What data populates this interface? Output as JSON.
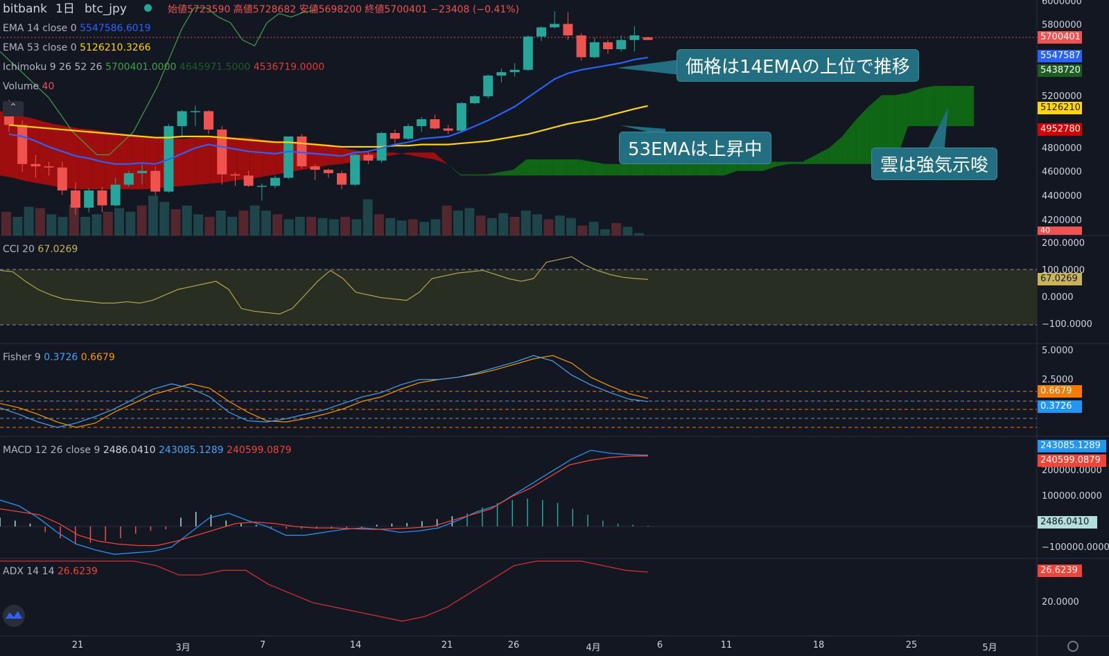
{
  "header": {
    "exchange": "bitbank",
    "interval": "1日",
    "symbol": "btc_jpy",
    "ohlc": "始値5723590 高値5728682 安値5698200 終値5700401 −23408 (−0.41%)"
  },
  "legend": {
    "ema14": {
      "name": "EMA 14 close 0",
      "value": "5547586.6019",
      "color": "#2962ff"
    },
    "ema53": {
      "name": "EMA 53 close 0",
      "value": "5126210.3266",
      "color": "#ffd600"
    },
    "ichimoku": {
      "name": "Ichimoku 9 26 52 26",
      "v1": "5700401.0000",
      "v2": "4645971.5000",
      "v3": "4536719.0000"
    },
    "volume": {
      "name": "Volume",
      "value": "40"
    },
    "cci": {
      "name": "CCI 20",
      "value": "67.0269"
    },
    "fisher": {
      "name": "Fisher 9",
      "v1": "0.3726",
      "v2": "0.6679"
    },
    "macd": {
      "name": "MACD 12 26 close 9",
      "v1": "2486.0410",
      "v2": "243085.1289",
      "v3": "240599.0879"
    },
    "adx": {
      "name": "ADX 14 14",
      "value": "26.6239"
    }
  },
  "callouts": {
    "ema14": "価格は14EMAの上位で推移",
    "ema53": "53EMAは上昇中",
    "cloud": "雲は強気示唆"
  },
  "price_axis": {
    "ticks": [
      "6000000",
      "5800000",
      "5200000",
      "4800000",
      "4600000",
      "4400000",
      "4200000"
    ],
    "tags": {
      "close": "5700401",
      "ema14": "5547587",
      "span": "5438720",
      "ema53": "5126210",
      "spanb": "4952780",
      "vol": "40"
    }
  },
  "cci_axis": {
    "ticks": [
      "200.0000",
      "100.0000",
      "0.0000",
      "−100.0000"
    ],
    "tag": "67.0269"
  },
  "fisher_axis": {
    "ticks": [
      "5.0000",
      "2.5000"
    ],
    "tag1": "0.6679",
    "tag2": "0.3726"
  },
  "macd_axis": {
    "ticks": [
      "200000.0000",
      "100000.0000",
      "−100000.0000"
    ],
    "tag1": "243085.1289",
    "tag2": "240599.0879",
    "tag3": "2486.0410"
  },
  "adx_axis": {
    "ticks": [
      "20.0000"
    ],
    "tag": "26.6239"
  },
  "x_axis": {
    "ticks": [
      "21",
      "3月",
      "7",
      "14",
      "21",
      "26",
      "4月",
      "6",
      "11",
      "18",
      "25",
      "5月"
    ]
  },
  "chart_data": {
    "type": "candlestick",
    "title": "bitbank btc_jpy 1日",
    "ylim": [
      4100000,
      6000000
    ],
    "candles": [
      [
        5060000,
        5180000,
        4900000,
        4960000
      ],
      [
        4960000,
        5000000,
        4550000,
        4620000
      ],
      [
        4620000,
        4700000,
        4500000,
        4600000
      ],
      [
        4600000,
        4640000,
        4520000,
        4590000
      ],
      [
        4590000,
        4640000,
        4350000,
        4390000
      ],
      [
        4390000,
        4460000,
        4180000,
        4240000
      ],
      [
        4240000,
        4410000,
        4200000,
        4390000
      ],
      [
        4390000,
        4420000,
        4200000,
        4260000
      ],
      [
        4260000,
        4500000,
        4250000,
        4440000
      ],
      [
        4440000,
        4560000,
        4420000,
        4540000
      ],
      [
        4540000,
        4620000,
        4440000,
        4560000
      ],
      [
        4560000,
        4600000,
        4350000,
        4380000
      ],
      [
        4380000,
        4970000,
        4370000,
        4950000
      ],
      [
        4950000,
        5090000,
        4850000,
        5080000
      ],
      [
        5080000,
        5130000,
        4950000,
        5080000
      ],
      [
        5080000,
        5090000,
        4880000,
        4920000
      ],
      [
        4920000,
        4950000,
        4440000,
        4530000
      ],
      [
        4530000,
        4550000,
        4430000,
        4520000
      ],
      [
        4520000,
        4560000,
        4420000,
        4430000
      ],
      [
        4430000,
        4450000,
        4300000,
        4430000
      ],
      [
        4430000,
        4520000,
        4410000,
        4500000
      ],
      [
        4500000,
        4860000,
        4490000,
        4860000
      ],
      [
        4860000,
        4880000,
        4580000,
        4600000
      ],
      [
        4600000,
        4620000,
        4480000,
        4570000
      ],
      [
        4570000,
        4580000,
        4500000,
        4540000
      ],
      [
        4540000,
        4560000,
        4400000,
        4440000
      ],
      [
        4440000,
        4710000,
        4430000,
        4700000
      ],
      [
        4700000,
        4730000,
        4620000,
        4650000
      ],
      [
        4650000,
        4900000,
        4630000,
        4890000
      ],
      [
        4890000,
        4920000,
        4800000,
        4840000
      ],
      [
        4840000,
        4970000,
        4830000,
        4950000
      ],
      [
        4950000,
        5030000,
        4900000,
        5010000
      ],
      [
        5010000,
        5050000,
        4920000,
        4930000
      ],
      [
        4930000,
        4960000,
        4880000,
        4910000
      ],
      [
        4910000,
        5160000,
        4900000,
        5150000
      ],
      [
        5150000,
        5220000,
        5140000,
        5210000
      ],
      [
        5210000,
        5400000,
        5190000,
        5390000
      ],
      [
        5390000,
        5450000,
        5330000,
        5420000
      ],
      [
        5420000,
        5500000,
        5380000,
        5440000
      ],
      [
        5440000,
        5740000,
        5430000,
        5730000
      ],
      [
        5730000,
        5820000,
        5690000,
        5810000
      ],
      [
        5810000,
        5950000,
        5800000,
        5840000
      ],
      [
        5840000,
        5940000,
        5700000,
        5740000
      ],
      [
        5740000,
        5760000,
        5520000,
        5550000
      ],
      [
        5550000,
        5720000,
        5540000,
        5680000
      ],
      [
        5680000,
        5700000,
        5580000,
        5620000
      ],
      [
        5620000,
        5740000,
        5600000,
        5700000
      ],
      [
        5700000,
        5820000,
        5600000,
        5740000
      ],
      [
        5723590,
        5728682,
        5698200,
        5700401
      ]
    ],
    "ema14": [
      4880000,
      4860000,
      4820000,
      4770000,
      4730000,
      4690000,
      4670000,
      4640000,
      4620000,
      4620000,
      4630000,
      4620000,
      4660000,
      4710000,
      4760000,
      4790000,
      4770000,
      4750000,
      4730000,
      4720000,
      4710000,
      4730000,
      4720000,
      4710000,
      4700000,
      4690000,
      4720000,
      4730000,
      4760000,
      4790000,
      4810000,
      4840000,
      4850000,
      4860000,
      4900000,
      4950000,
      5000000,
      5060000,
      5120000,
      5200000,
      5280000,
      5360000,
      5410000,
      5440000,
      5460000,
      5480000,
      5500000,
      5530000,
      5547587
    ],
    "ema53": [
      4960000,
      4950000,
      4940000,
      4930000,
      4920000,
      4910000,
      4900000,
      4890000,
      4880000,
      4870000,
      4860000,
      4850000,
      4850000,
      4860000,
      4860000,
      4860000,
      4850000,
      4840000,
      4830000,
      4820000,
      4810000,
      4810000,
      4800000,
      4790000,
      4780000,
      4770000,
      4770000,
      4770000,
      4770000,
      4780000,
      4780000,
      4790000,
      4790000,
      4790000,
      4800000,
      4810000,
      4820000,
      4840000,
      4860000,
      4880000,
      4910000,
      4940000,
      4970000,
      4990000,
      5010000,
      5040000,
      5070000,
      5100000,
      5126210
    ],
    "cloud_a": [
      5080000,
      5060000,
      5030000,
      5000000,
      4970000,
      4950000,
      4930000,
      4920000,
      4900000,
      4890000,
      4870000,
      4860000,
      4850000,
      4840000,
      4840000,
      4850000,
      4860000,
      4860000,
      4850000,
      4850000,
      4830000,
      4820000,
      4820000,
      4810000,
      4800000,
      4790000,
      4760000,
      4740000,
      4720000,
      4720000,
      4720000,
      4700000,
      4680000,
      4660000,
      4620000,
      4530000,
      4530000,
      4530000,
      4550000,
      4570000,
      4660000,
      4660000,
      4660000,
      4660000,
      4660000,
      4640000,
      4620000,
      4620000,
      4620000,
      4620000,
      4620000,
      4640000,
      4640000,
      4640000,
      4640000,
      4640000,
      4640000,
      4640000,
      4640000,
      4640000,
      4640000,
      4640000,
      4700000,
      4760000,
      4860000,
      5000000,
      5120000,
      5220000,
      5220000,
      5240000,
      5280000,
      5300000,
      5300000,
      5300000,
      5300000
    ],
    "cloud_b": [
      4520000,
      4500000,
      4470000,
      4450000,
      4430000,
      4410000,
      4400000,
      4400000,
      4400000,
      4400000,
      4400000,
      4400000,
      4410000,
      4420000,
      4430000,
      4440000,
      4450000,
      4460000,
      4480000,
      4490000,
      4510000,
      4530000,
      4550000,
      4570000,
      4590000,
      4610000,
      4620000,
      4640000,
      4660000,
      4680000,
      4700000,
      4720000,
      4720000,
      4720000,
      4620000,
      4520000,
      4520000,
      4520000,
      4520000,
      4520000,
      4520000,
      4520000,
      4520000,
      4520000,
      4520000,
      4520000,
      4520000,
      4520000,
      4520000,
      4520000,
      4520000,
      4520000,
      4520000,
      4520000,
      4520000,
      4520000,
      4560000,
      4560000,
      4560000,
      4600000,
      4620000,
      4620000,
      4620000,
      4620000,
      4620000,
      4620000,
      4620000,
      4620000,
      4620000,
      4950000,
      4950000,
      4950000,
      4950000,
      4950000,
      4950000
    ],
    "chikou": [
      5600000,
      5500000,
      5400000,
      5300000,
      5200000,
      5050000,
      4900000,
      4800000,
      4700000,
      4700000,
      4800000,
      4900000,
      5100000,
      5300000,
      5550000,
      5800000,
      5980000,
      5980000,
      5900000,
      5850000,
      5700000,
      5650000,
      5850000,
      5930000,
      5900000,
      5940000,
      5960000
    ],
    "volume": [
      38,
      30,
      46,
      44,
      34,
      30,
      50,
      30,
      34,
      38,
      44,
      38,
      48,
      64,
      54,
      42,
      48,
      34,
      30,
      40,
      30,
      40,
      48,
      40,
      34,
      26,
      30,
      30,
      28,
      26,
      30,
      26,
      58,
      34,
      28,
      24,
      26,
      22,
      26,
      48,
      40,
      44,
      32,
      28,
      36,
      30,
      40,
      34,
      26,
      32,
      28,
      16,
      22,
      10,
      20,
      14,
      4
    ],
    "cci": [
      100,
      95,
      60,
      30,
      10,
      -5,
      -10,
      -15,
      -20,
      -20,
      -15,
      -20,
      -10,
      10,
      30,
      40,
      50,
      60,
      30,
      -40,
      -50,
      -55,
      -60,
      -40,
      10,
      60,
      100,
      70,
      20,
      10,
      0,
      -5,
      -10,
      20,
      70,
      80,
      90,
      95,
      100,
      85,
      70,
      60,
      70,
      130,
      140,
      150,
      120,
      100,
      85,
      75,
      70,
      67
    ],
    "fisher": [
      -0.2,
      -0.8,
      -1.5,
      -2.0,
      -1.6,
      -1.0,
      -0.3,
      0.6,
      1.5,
      2.0,
      1.6,
      0.8,
      -0.6,
      -1.4,
      -1.5,
      -1.2,
      -0.8,
      -0.4,
      0.2,
      0.8,
      1.2,
      1.9,
      2.4,
      2.4,
      2.6,
      3.0,
      3.5,
      4.0,
      4.6,
      4.1,
      2.8,
      1.9,
      1.2,
      0.6,
      0.3726
    ],
    "fisher_signal": [
      0.2,
      -0.2,
      -0.8,
      -1.5,
      -2.0,
      -1.6,
      -0.6,
      0.2,
      1.0,
      1.5,
      2.0,
      1.6,
      0.4,
      -0.6,
      -1.4,
      -1.5,
      -1.2,
      -0.8,
      -0.3,
      0.4,
      0.8,
      1.5,
      2.1,
      2.4,
      2.6,
      2.9,
      3.3,
      3.8,
      4.3,
      4.6,
      3.9,
      2.6,
      1.8,
      1.1,
      0.6679
    ],
    "macd": [
      90000,
      70000,
      30000,
      -20000,
      -60000,
      -80000,
      -95000,
      -90000,
      -85000,
      -70000,
      -20000,
      30000,
      45000,
      20000,
      0,
      -30000,
      -30000,
      -20000,
      -10000,
      -5000,
      -10000,
      -20000,
      -15000,
      -5000,
      20000,
      50000,
      70000,
      110000,
      150000,
      190000,
      230000,
      260000,
      250000,
      245000,
      243085
    ],
    "macd_signal": [
      60000,
      50000,
      40000,
      10000,
      -30000,
      -50000,
      -60000,
      -65000,
      -65000,
      -50000,
      -30000,
      -10000,
      10000,
      15000,
      10000,
      0,
      -5000,
      -5000,
      -8000,
      -10000,
      -8000,
      -5000,
      0,
      20000,
      40000,
      60000,
      100000,
      130000,
      170000,
      210000,
      225000,
      235000,
      240000,
      240599
    ],
    "macd_hist": [
      30000,
      20000,
      10000,
      -20000,
      -40000,
      -60000,
      -55000,
      -50000,
      -40000,
      -25000,
      -15000,
      -10000,
      30000,
      50000,
      40000,
      20000,
      10000,
      5000,
      -8000,
      -8000,
      -8000,
      -8000,
      -8000,
      -8000,
      -6000,
      6000,
      10000,
      12000,
      18000,
      25000,
      35000,
      45000,
      65000,
      80000,
      90000,
      95000,
      90000,
      80000,
      60000,
      40000,
      20000,
      10000,
      6000,
      2486
    ],
    "adx": [
      33,
      31,
      30,
      29,
      31,
      32,
      30,
      28,
      26,
      26,
      27,
      27,
      24,
      22,
      20,
      19,
      18,
      17,
      16,
      17,
      19,
      22,
      25,
      28,
      30,
      30,
      29,
      28,
      27,
      26.6239
    ]
  }
}
